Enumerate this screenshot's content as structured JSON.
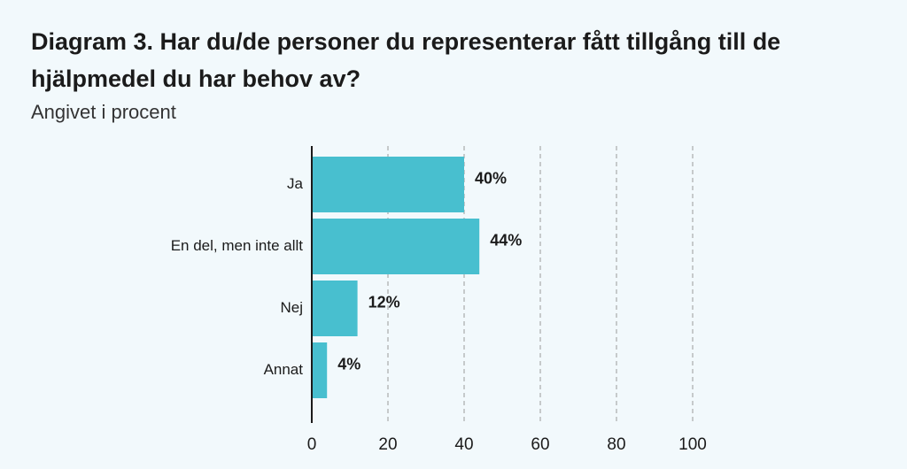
{
  "chart_data": {
    "type": "bar",
    "orientation": "horizontal",
    "title": "Diagram 3. Har du/de personer du representerar fått tillgång till de hjälpmedel du har behov av?",
    "subtitle": "Angivet i procent",
    "categories": [
      "Ja",
      "En del, men inte allt",
      "Nej",
      "Annat"
    ],
    "values": [
      40,
      44,
      12,
      4
    ],
    "value_labels": [
      "40%",
      "44%",
      "12%",
      "4%"
    ],
    "color": "#48bfcf",
    "xlim": [
      0,
      100
    ],
    "xticks": [
      0,
      20,
      40,
      60,
      80,
      100
    ],
    "grid": true
  }
}
